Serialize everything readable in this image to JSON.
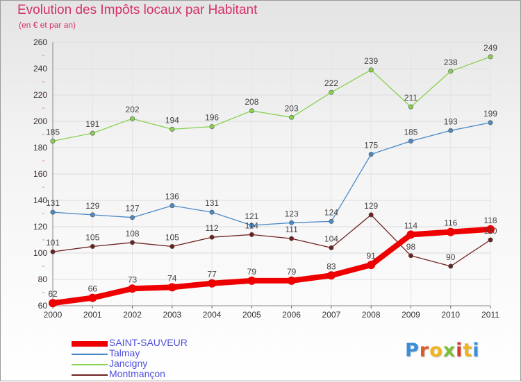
{
  "header": {
    "title": "Evolution des Impôts locaux par Habitant",
    "subtitle": "(en € et par an)"
  },
  "logo": {
    "text": "Proxiti",
    "colors": [
      "#3a8fd8",
      "#e05b28",
      "#f0b41e",
      "#7bbf3a",
      "#d63a2a",
      "#f0b41e",
      "#3a8fd8"
    ]
  },
  "chart_data": {
    "type": "line",
    "title": "Evolution des Impôts locaux par Habitant",
    "subtitle": "(en € et par an)",
    "xlabel": "",
    "ylabel": "",
    "x": [
      "2000",
      "2001",
      "2002",
      "2003",
      "2004",
      "2005",
      "2006",
      "2007",
      "2008",
      "2009",
      "2010",
      "2011"
    ],
    "ylim": [
      60,
      260
    ],
    "yticks": [
      "60",
      "80",
      "100",
      "120",
      "140",
      "160",
      "180",
      "200",
      "220",
      "240",
      "260"
    ],
    "grid": true,
    "legend_position": "bottom-left",
    "series": [
      {
        "name": "SAINT-SAUVEUR",
        "color": "#ee0000",
        "values": [
          62,
          66,
          73,
          74,
          77,
          79,
          79,
          83,
          91,
          114,
          116,
          118
        ]
      },
      {
        "name": "Talmay",
        "color": "#4a8ac8",
        "values": [
          131,
          129,
          127,
          136,
          131,
          121,
          123,
          124,
          175,
          185,
          193,
          199
        ]
      },
      {
        "name": "Jancigny",
        "color": "#86d14e",
        "values": [
          185,
          191,
          202,
          194,
          196,
          208,
          203,
          222,
          239,
          211,
          238,
          249
        ]
      },
      {
        "name": "Montmançon",
        "color": "#6e1f1f",
        "values": [
          101,
          105,
          108,
          105,
          112,
          114,
          111,
          104,
          129,
          98,
          90,
          110
        ]
      }
    ]
  }
}
